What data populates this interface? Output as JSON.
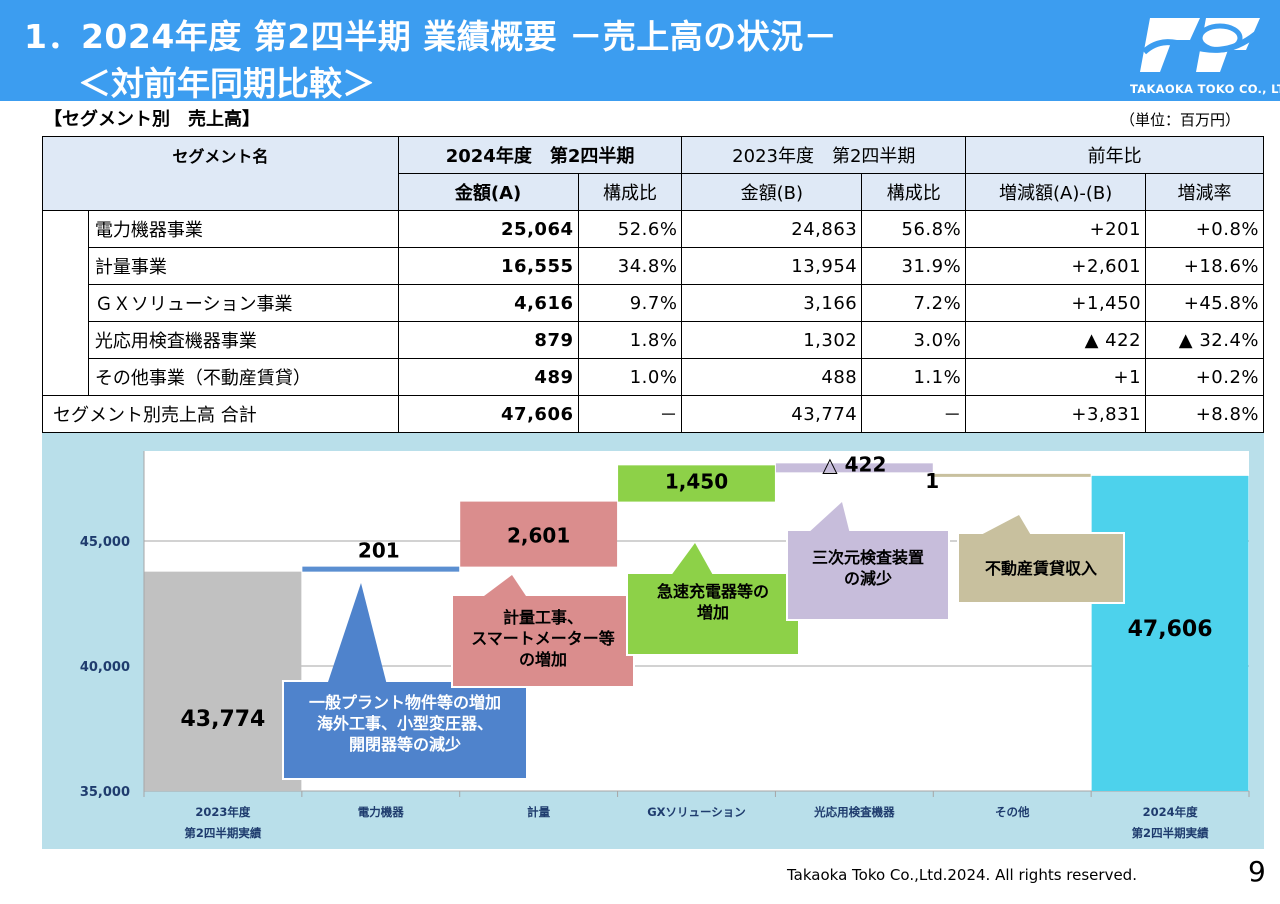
{
  "header": {
    "title_line1": "1．2024年度 第2四半期 業績概要 －売上高の状況－",
    "title_line2": "＜対前年同期比較＞",
    "logo_text": "TAKAOKA TOKO CO., LTD."
  },
  "section_label": "【セグメント別　売上高】",
  "unit_label": "（単位：百万円）",
  "table": {
    "header_segment": "セグメント名",
    "header_fy2024": "2024年度　第2四半期",
    "header_fy2023": "2023年度　第2四半期",
    "header_yoy": "前年比",
    "sub_amount_a": "金額(A)",
    "sub_ratio_a": "構成比",
    "sub_amount_b": "金額(B)",
    "sub_ratio_b": "構成比",
    "sub_diff": "増減額(A)-(B)",
    "sub_rate": "増減率",
    "rows": [
      {
        "name": "電力機器事業",
        "a": "25,064",
        "ra": "52.6%",
        "b": "24,863",
        "rb": "56.8%",
        "diff": "+201",
        "rate": "+0.8%"
      },
      {
        "name": "計量事業",
        "a": "16,555",
        "ra": "34.8%",
        "b": "13,954",
        "rb": "31.9%",
        "diff": "+2,601",
        "rate": "+18.6%"
      },
      {
        "name": "ＧＸソリューション事業",
        "a": "4,616",
        "ra": "9.7%",
        "b": "3,166",
        "rb": "7.2%",
        "diff": "+1,450",
        "rate": "+45.8%"
      },
      {
        "name": "光応用検査機器事業",
        "a": "879",
        "ra": "1.8%",
        "b": "1,302",
        "rb": "3.0%",
        "diff": "▲ 422",
        "rate": "▲ 32.4%"
      },
      {
        "name": "その他事業（不動産賃貸）",
        "a": "489",
        "ra": "1.0%",
        "b": "488",
        "rb": "1.1%",
        "diff": "+1",
        "rate": "+0.2%"
      }
    ],
    "total": {
      "name": "セグメント別売上高 合計",
      "a": "47,606",
      "ra": "－",
      "b": "43,774",
      "rb": "－",
      "diff": "+3,831",
      "rate": "+8.8%"
    }
  },
  "chart_data": {
    "type": "bar",
    "variant": "waterfall",
    "categories": [
      "2023年度\n第2四半期実績",
      "電力機器",
      "計量",
      "GXソリューション",
      "光応用検査機器",
      "その他",
      "2024年度\n第2四半期実績"
    ],
    "values": [
      43774,
      201,
      2601,
      1450,
      -422,
      1,
      47606
    ],
    "value_labels": [
      "43,774",
      "201",
      "2,601",
      "1,450",
      "△ 422",
      "1",
      "47,606"
    ],
    "yticks": [
      "35,000",
      "40,000",
      "45,000"
    ],
    "ylim": [
      35000,
      48600
    ],
    "grid": true,
    "colors": [
      "#c1c1c1",
      "#5b8fd1",
      "#da8d8d",
      "#8dd148",
      "#c7bddb",
      "#c8c09e",
      "#4dd2ec"
    ],
    "annotations": [
      "一般プラント物件等の増加\n海外工事、小型変圧器、\n開閉器等の減少",
      "計量工事、\nスマートメーター等\nの増加",
      "急速充電器等の\n増加",
      "三次元検査装置\nの減少",
      "不動産賃貸収入"
    ]
  },
  "footer": "Takaoka Toko Co.,Ltd.2024. All rights reserved.",
  "page_number": "9"
}
